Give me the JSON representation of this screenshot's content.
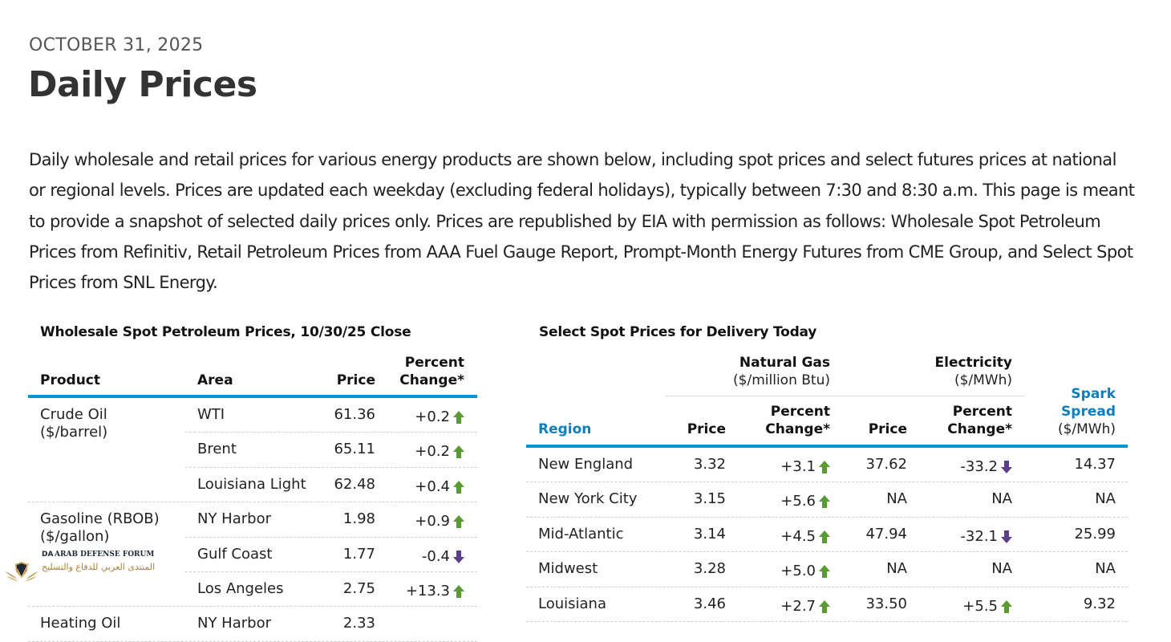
{
  "header": {
    "date": "OCTOBER 31, 2025",
    "title": "Daily Prices"
  },
  "intro": "Daily wholesale and retail prices for various energy products are shown below, including spot prices and select futures prices at national or regional levels. Prices are updated each weekday (excluding federal holidays), typically between 7:30 and 8:30 a.m. This page is meant to provide a snapshot of selected daily prices only. Prices are republished by EIA with permission as follows: Wholesale Spot Petroleum Prices from Refinitiv, Retail Petroleum Prices from AAA Fuel Gauge Report, Prompt-Month Energy Futures from CME Group, and Select Spot Prices from SNL Energy.",
  "colors": {
    "accent_blue": "#0096d6",
    "up_green": "#5a9a32",
    "down_purple": "#5b3f8a"
  },
  "wholesale": {
    "title": "Wholesale Spot Petroleum Prices, 10/30/25 Close",
    "headers": {
      "product": "Product",
      "area": "Area",
      "price": "Price",
      "change_line1": "Percent",
      "change_line2": "Change*"
    },
    "groups": [
      {
        "product_line1": "Crude Oil",
        "product_line2": "($/barrel)",
        "rows": [
          {
            "area": "WTI",
            "price": "61.36",
            "change": "+0.2",
            "direction": "up"
          },
          {
            "area": "Brent",
            "price": "65.11",
            "change": "+0.2",
            "direction": "up"
          },
          {
            "area": "Louisiana Light",
            "price": "62.48",
            "change": "+0.4",
            "direction": "up"
          }
        ]
      },
      {
        "product_line1": "Gasoline (RBOB)",
        "product_line2": "($/gallon)",
        "rows": [
          {
            "area": "NY Harbor",
            "price": "1.98",
            "change": "+0.9",
            "direction": "up"
          },
          {
            "area": "Gulf Coast",
            "price": "1.77",
            "change": "-0.4",
            "direction": "down"
          },
          {
            "area": "Los Angeles",
            "price": "2.75",
            "change": "+13.3",
            "direction": "up"
          }
        ]
      },
      {
        "product_line1": "Heating Oil",
        "product_line2": "",
        "rows": [
          {
            "area": "NY Harbor",
            "price": "2.33",
            "change": "",
            "direction": ""
          }
        ]
      }
    ]
  },
  "spot": {
    "title": "Select Spot Prices for Delivery Today",
    "headers": {
      "natgas": "Natural Gas",
      "natgas_unit": "($/million Btu)",
      "elec": "Electricity",
      "elec_unit": "($/MWh)",
      "region": "Region",
      "price": "Price",
      "change_line1": "Percent",
      "change_line2": "Change*",
      "spark_line1": "Spark",
      "spark_line2": "Spread",
      "spark_unit": "($/MWh)"
    },
    "rows": [
      {
        "region": "New England",
        "gas_price": "3.32",
        "gas_change": "+3.1",
        "gas_dir": "up",
        "elec_price": "37.62",
        "elec_change": "-33.2",
        "elec_dir": "down",
        "spark": "14.37"
      },
      {
        "region": "New York City",
        "gas_price": "3.15",
        "gas_change": "+5.6",
        "gas_dir": "up",
        "elec_price": "NA",
        "elec_change": "NA",
        "elec_dir": "",
        "spark": "NA"
      },
      {
        "region": "Mid-Atlantic",
        "gas_price": "3.14",
        "gas_change": "+4.5",
        "gas_dir": "up",
        "elec_price": "47.94",
        "elec_change": "-32.1",
        "elec_dir": "down",
        "spark": "25.99"
      },
      {
        "region": "Midwest",
        "gas_price": "3.28",
        "gas_change": "+5.0",
        "gas_dir": "up",
        "elec_price": "NA",
        "elec_change": "NA",
        "elec_dir": "",
        "spark": "NA"
      },
      {
        "region": "Louisiana",
        "gas_price": "3.46",
        "gas_change": "+2.7",
        "gas_dir": "up",
        "elec_price": "33.50",
        "elec_change": "+5.5",
        "elec_dir": "up",
        "spark": "9.32"
      }
    ]
  },
  "watermark": {
    "line1": "ARAB DEFENSE FORUM",
    "line2": "المنتدى العربي للدفاع والتسليح",
    "monogram": "DA"
  }
}
